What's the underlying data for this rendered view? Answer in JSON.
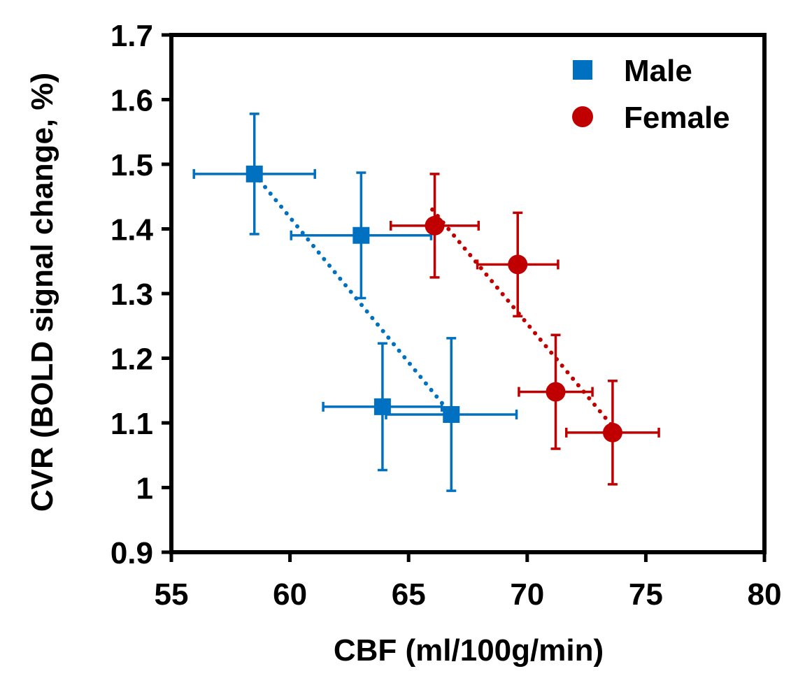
{
  "chart_data": {
    "type": "scatter",
    "title": "",
    "xlabel": "CBF (ml/100g/min)",
    "ylabel": "CVR (BOLD signal change, %)",
    "xlim": [
      55,
      80
    ],
    "ylim": [
      0.9,
      1.7
    ],
    "xticks": [
      55,
      60,
      65,
      70,
      75,
      80
    ],
    "yticks": [
      0.9,
      1,
      1.1,
      1.2,
      1.3,
      1.4,
      1.5,
      1.6,
      1.7
    ],
    "ytick_labels": [
      "0.9",
      "1",
      "1.1",
      "1.2",
      "1.3",
      "1.4",
      "1.5",
      "1.6",
      "1.7"
    ],
    "grid": false,
    "legend_position": "top-right",
    "series": [
      {
        "name": "Male",
        "marker": "square",
        "color": "#0070C0",
        "trendline": "dotted",
        "points": [
          {
            "x": 58.5,
            "y": 1.485,
            "xerr": 2.55,
            "yerr": 0.093
          },
          {
            "x": 63.0,
            "y": 1.39,
            "xerr": 2.95,
            "yerr": 0.097
          },
          {
            "x": 63.9,
            "y": 1.125,
            "xerr": 2.5,
            "yerr": 0.098
          },
          {
            "x": 66.8,
            "y": 1.113,
            "xerr": 2.75,
            "yerr": 0.118
          }
        ],
        "trend": {
          "x1": 58.5,
          "y1": 1.485,
          "x2": 66.8,
          "y2": 1.113
        }
      },
      {
        "name": "Female",
        "marker": "circle",
        "color": "#C00000",
        "trendline": "dotted",
        "points": [
          {
            "x": 66.1,
            "y": 1.405,
            "xerr": 1.85,
            "yerr": 0.08
          },
          {
            "x": 69.6,
            "y": 1.345,
            "xerr": 1.7,
            "yerr": 0.08
          },
          {
            "x": 71.2,
            "y": 1.148,
            "xerr": 1.55,
            "yerr": 0.088
          },
          {
            "x": 73.6,
            "y": 1.085,
            "xerr": 1.95,
            "yerr": 0.08
          }
        ],
        "trend": {
          "x1": 66.0,
          "y1": 1.43,
          "x2": 73.7,
          "y2": 1.09
        }
      }
    ]
  }
}
